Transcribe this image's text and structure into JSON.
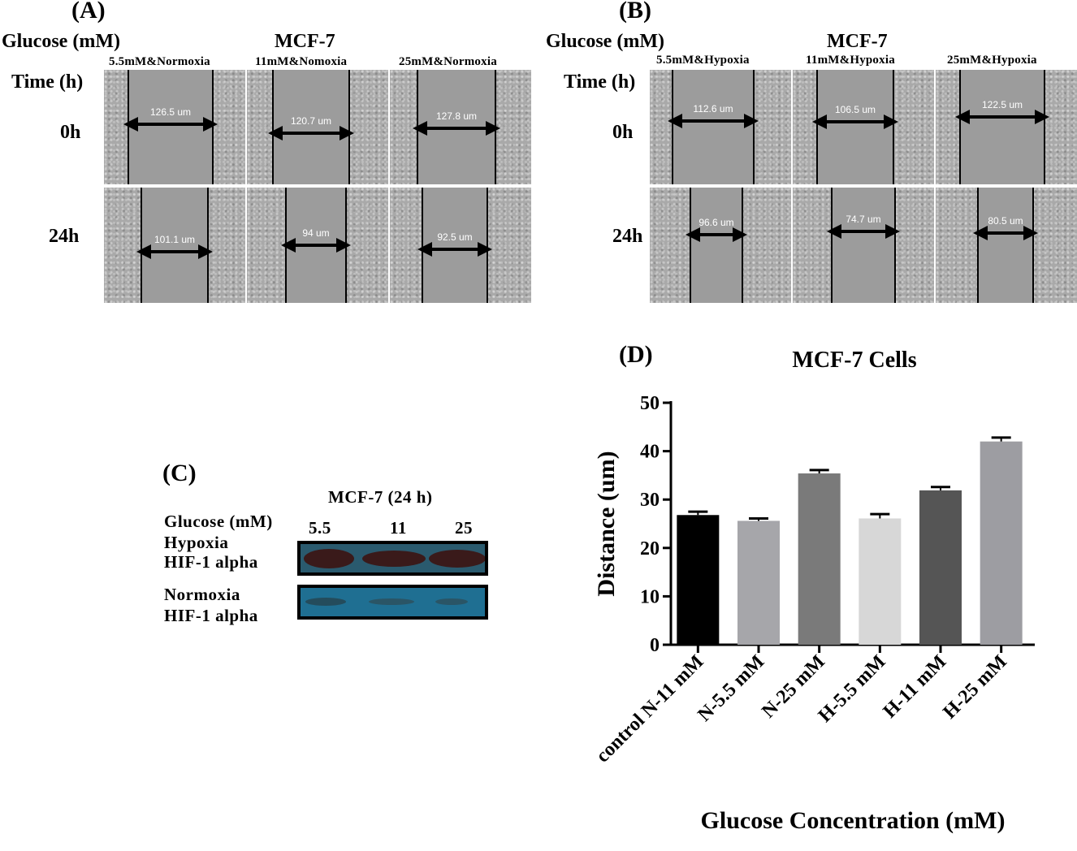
{
  "panel_a": {
    "letter": "(A)",
    "glucose_label": "Glucose (mM)",
    "cell_line": "MCF-7",
    "time_label": "Time (h)",
    "conditions": [
      "5.5mM&Normoxia",
      "11mM&Nomoxia",
      "25mM&Normoxia"
    ],
    "rows": [
      "0h",
      "24h"
    ],
    "measurements": [
      [
        "126.5 um",
        "120.7 um",
        "127.8 um"
      ],
      [
        "101.1 um",
        "94 um",
        "92.5 um"
      ]
    ]
  },
  "panel_b": {
    "letter": "(B)",
    "glucose_label": "Glucose (mM)",
    "cell_line": "MCF-7",
    "time_label": "Time (h)",
    "conditions": [
      "5.5mM&Hypoxia",
      "11mM&Hypoxia",
      "25mM&Hypoxia"
    ],
    "rows": [
      "0h",
      "24h"
    ],
    "measurements": [
      [
        "112.6 um",
        "106.5 um",
        "122.5 um"
      ],
      [
        "96.6 um",
        "74.7 um",
        "80.5 um"
      ]
    ]
  },
  "panel_c": {
    "letter": "(C)",
    "title": "MCF-7 (24 h)",
    "glucose_label": "Glucose (mM)",
    "concentrations": [
      "5.5",
      "11",
      "25"
    ],
    "blot1_labels": [
      "Hypoxia",
      "HIF-1 alpha"
    ],
    "blot2_labels": [
      "Normoxia",
      "HIF-1 alpha"
    ],
    "band_color": "#3a1a1a",
    "membrane_color": "#1f6f92"
  },
  "panel_d": {
    "letter": "(D)"
  },
  "chart_data": {
    "type": "bar",
    "title": "MCF-7 Cells",
    "xlabel": "Glucose Concentration (mM)",
    "ylabel": "Distance (um)",
    "categories": [
      "control N-11 mM",
      "N-5.5 mM",
      "N-25 mM",
      "H-5.5 mM",
      "H-11 mM",
      "H-25 mM"
    ],
    "values": [
      26.8,
      25.6,
      35.4,
      26.1,
      31.9,
      42.0
    ],
    "errors": [
      0.7,
      0.5,
      0.7,
      0.9,
      0.7,
      0.8
    ],
    "colors": [
      "#000000",
      "#a6a6aa",
      "#7a7a7a",
      "#d7d7d7",
      "#555555",
      "#9d9da2"
    ],
    "ylim": [
      0,
      50
    ],
    "yticks": [
      0,
      10,
      20,
      30,
      40,
      50
    ],
    "grid": false
  }
}
